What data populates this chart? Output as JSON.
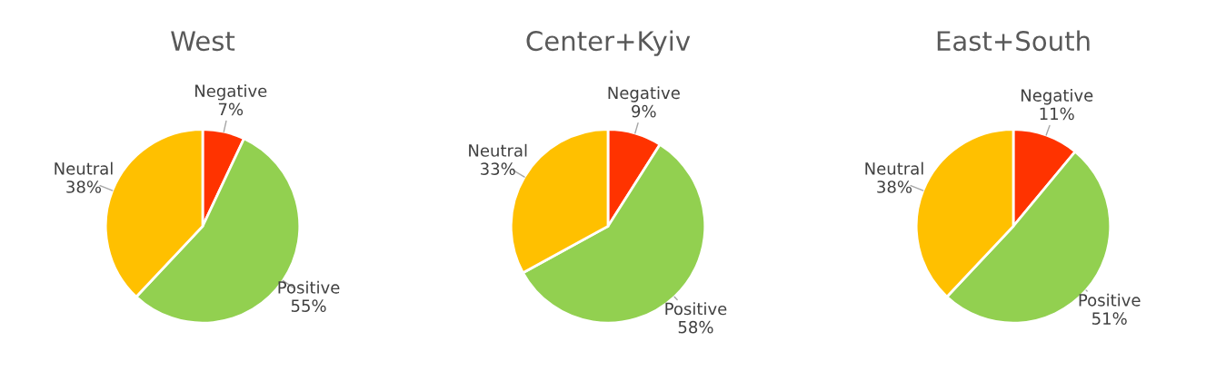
{
  "chart_data": [
    {
      "type": "pie",
      "title": "West",
      "categories": [
        "Negative",
        "Positive",
        "Neutral"
      ],
      "values": [
        7,
        55,
        38
      ],
      "value_labels": [
        "7%",
        "55%",
        "38%"
      ],
      "colors": [
        "#ff3300",
        "#92d050",
        "#ffc000"
      ],
      "legend": false
    },
    {
      "type": "pie",
      "title": "Center+Kyiv",
      "categories": [
        "Negative",
        "Positive",
        "Neutral"
      ],
      "values": [
        9,
        58,
        33
      ],
      "value_labels": [
        "9%",
        "58%",
        "33%"
      ],
      "colors": [
        "#ff3300",
        "#92d050",
        "#ffc000"
      ],
      "legend": false
    },
    {
      "type": "pie",
      "title": "East+South",
      "categories": [
        "Negative",
        "Positive",
        "Neutral"
      ],
      "values": [
        11,
        51,
        38
      ],
      "value_labels": [
        "11%",
        "51%",
        "38%"
      ],
      "colors": [
        "#ff3300",
        "#92d050",
        "#ffc000"
      ],
      "legend": false
    }
  ]
}
